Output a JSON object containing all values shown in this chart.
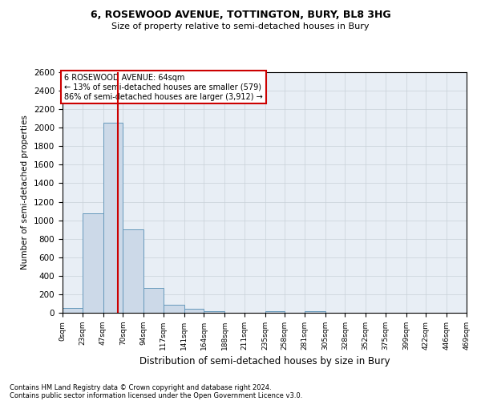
{
  "title1": "6, ROSEWOOD AVENUE, TOTTINGTON, BURY, BL8 3HG",
  "title2": "Size of property relative to semi-detached houses in Bury",
  "xlabel": "Distribution of semi-detached houses by size in Bury",
  "ylabel": "Number of semi-detached properties",
  "bar_edges": [
    0,
    23,
    47,
    70,
    94,
    117,
    141,
    164,
    188,
    211,
    235,
    258,
    281,
    305,
    328,
    352,
    375,
    399,
    422,
    446,
    469
  ],
  "bar_heights": [
    50,
    1075,
    2050,
    900,
    270,
    90,
    40,
    20,
    0,
    0,
    15,
    0,
    20,
    0,
    0,
    0,
    0,
    0,
    0,
    0
  ],
  "bar_color": "#ccd9e8",
  "bar_edge_color": "#6699bb",
  "grid_color": "#c8d0d8",
  "property_size": 64,
  "red_line_color": "#cc0000",
  "annotation_text": "6 ROSEWOOD AVENUE: 64sqm\n← 13% of semi-detached houses are smaller (579)\n86% of semi-detached houses are larger (3,912) →",
  "annotation_box_color": "#ffffff",
  "annotation_box_edge": "#cc0000",
  "ylim": [
    0,
    2600
  ],
  "yticks": [
    0,
    200,
    400,
    600,
    800,
    1000,
    1200,
    1400,
    1600,
    1800,
    2000,
    2200,
    2400,
    2600
  ],
  "footnote1": "Contains HM Land Registry data © Crown copyright and database right 2024.",
  "footnote2": "Contains public sector information licensed under the Open Government Licence v3.0.",
  "bg_color": "#ffffff",
  "plot_bg_color": "#e8eef5"
}
